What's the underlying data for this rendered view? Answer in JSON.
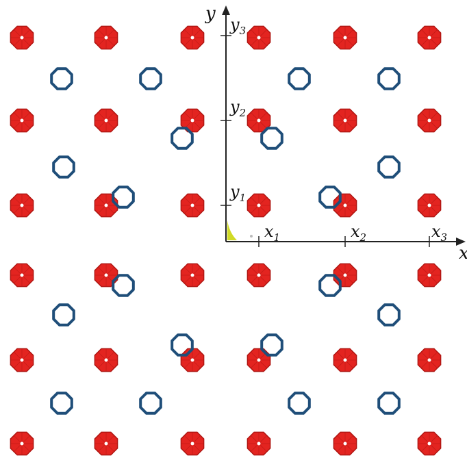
{
  "axes": {
    "x_axis_label": "x",
    "y_axis_label": "y",
    "x_ticks": [
      {
        "base": "x",
        "sub": "1"
      },
      {
        "base": "x",
        "sub": "2"
      },
      {
        "base": "x",
        "sub": "3"
      }
    ],
    "y_ticks": [
      {
        "base": "y",
        "sub": "1"
      },
      {
        "base": "y",
        "sub": "2"
      },
      {
        "base": "y",
        "sub": "3"
      }
    ]
  },
  "legend": {
    "filled_marker": "red filled octagon",
    "open_marker": "blue open octagon ring"
  },
  "colors": {
    "filled_marker": "#e32420",
    "filled_marker_edge": "#b01612",
    "open_marker": "#1f4e79",
    "axis": "#222222",
    "origin_mark": "#c8d400"
  }
}
